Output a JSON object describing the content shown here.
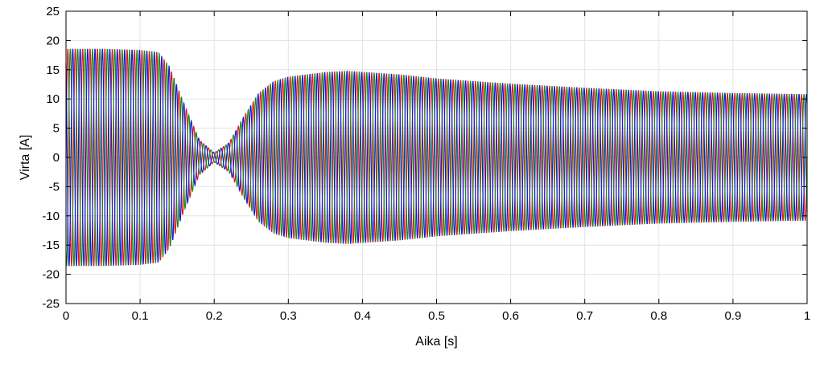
{
  "chart_data": {
    "type": "line",
    "title": "",
    "xlabel": "Aika [s]",
    "ylabel": "Virta [A]",
    "xlim": [
      0,
      1
    ],
    "ylim": [
      -25,
      25
    ],
    "xticks": [
      0,
      0.1,
      0.2,
      0.3,
      0.4,
      0.5,
      0.6,
      0.7,
      0.8,
      0.9,
      1
    ],
    "xtick_labels": [
      "0",
      "0.1",
      "0.2",
      "0.3",
      "0.4",
      "0.5",
      "0.6",
      "0.7",
      "0.8",
      "0.9",
      "1"
    ],
    "yticks": [
      -25,
      -20,
      -15,
      -10,
      -5,
      0,
      5,
      10,
      15,
      20,
      25
    ],
    "ytick_labels": [
      "-25",
      "-20",
      "-15",
      "-10",
      "-5",
      "0",
      "5",
      "10",
      "15",
      "20",
      "25"
    ],
    "grid": true,
    "frequency_hz": 100,
    "series": [
      {
        "color": "#d62020",
        "phase_deg": 0,
        "envelope": [
          [
            0.0,
            18.6
          ],
          [
            0.05,
            18.6
          ],
          [
            0.1,
            18.4
          ],
          [
            0.125,
            18.0
          ],
          [
            0.14,
            15.5
          ],
          [
            0.16,
            9.0
          ],
          [
            0.18,
            3.0
          ],
          [
            0.2,
            0.8
          ],
          [
            0.22,
            2.5
          ],
          [
            0.24,
            7.0
          ],
          [
            0.26,
            11.0
          ],
          [
            0.28,
            13.0
          ],
          [
            0.3,
            13.8
          ],
          [
            0.35,
            14.6
          ],
          [
            0.38,
            14.8
          ],
          [
            0.45,
            14.2
          ],
          [
            0.5,
            13.5
          ],
          [
            0.6,
            12.6
          ],
          [
            0.7,
            11.9
          ],
          [
            0.8,
            11.3
          ],
          [
            0.9,
            11.0
          ],
          [
            1.0,
            10.8
          ]
        ]
      },
      {
        "color": "#1a8a1a",
        "phase_deg": -120,
        "envelope": [
          [
            0.0,
            18.6
          ],
          [
            0.05,
            18.6
          ],
          [
            0.1,
            18.4
          ],
          [
            0.125,
            18.0
          ],
          [
            0.14,
            15.5
          ],
          [
            0.16,
            9.0
          ],
          [
            0.18,
            3.0
          ],
          [
            0.2,
            0.8
          ],
          [
            0.22,
            2.5
          ],
          [
            0.24,
            7.0
          ],
          [
            0.26,
            11.0
          ],
          [
            0.28,
            13.0
          ],
          [
            0.3,
            13.8
          ],
          [
            0.35,
            14.6
          ],
          [
            0.38,
            14.8
          ],
          [
            0.45,
            14.2
          ],
          [
            0.5,
            13.5
          ],
          [
            0.6,
            12.6
          ],
          [
            0.7,
            11.9
          ],
          [
            0.8,
            11.3
          ],
          [
            0.9,
            11.0
          ],
          [
            1.0,
            10.8
          ]
        ]
      },
      {
        "color": "#1a1ad6",
        "phase_deg": 120,
        "envelope": [
          [
            0.0,
            18.6
          ],
          [
            0.05,
            18.6
          ],
          [
            0.1,
            18.4
          ],
          [
            0.125,
            18.0
          ],
          [
            0.14,
            15.5
          ],
          [
            0.16,
            9.0
          ],
          [
            0.18,
            3.0
          ],
          [
            0.2,
            0.8
          ],
          [
            0.22,
            2.5
          ],
          [
            0.24,
            7.0
          ],
          [
            0.26,
            11.0
          ],
          [
            0.28,
            13.0
          ],
          [
            0.3,
            13.8
          ],
          [
            0.35,
            14.6
          ],
          [
            0.38,
            14.8
          ],
          [
            0.45,
            14.2
          ],
          [
            0.5,
            13.5
          ],
          [
            0.6,
            12.6
          ],
          [
            0.7,
            11.9
          ],
          [
            0.8,
            11.3
          ],
          [
            0.9,
            11.0
          ],
          [
            1.0,
            10.8
          ]
        ]
      }
    ]
  }
}
